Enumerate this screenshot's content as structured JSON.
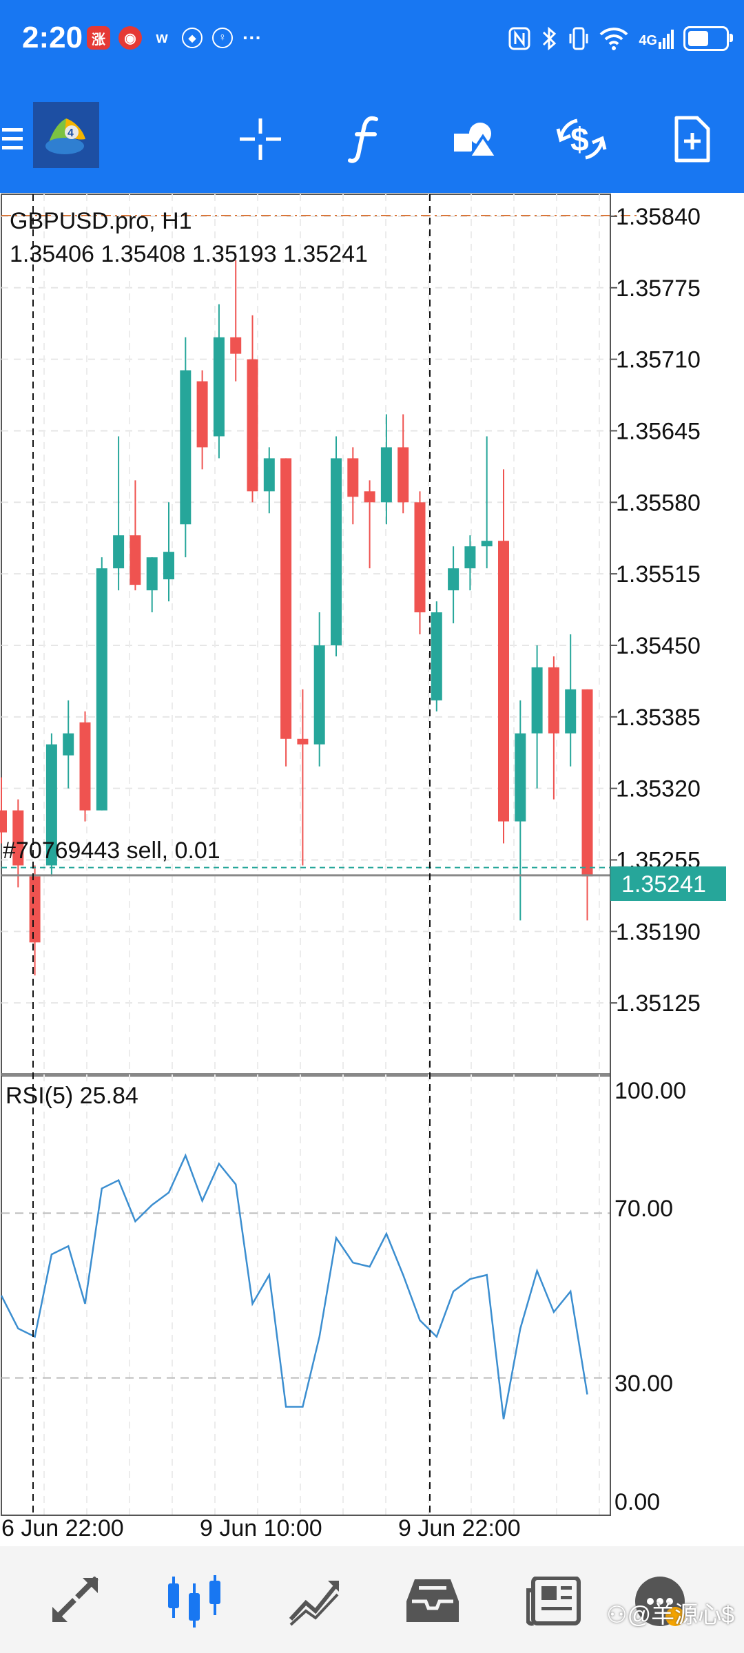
{
  "status_bar": {
    "time": "2:20",
    "more_indicator": "···",
    "network": "4G",
    "battery_level": 0.55,
    "notification_icons": [
      "trading-app-icon",
      "meituan-icon",
      "weibo-icon",
      "app-icon",
      "lightbulb-icon"
    ]
  },
  "toolbar": {
    "buttons": [
      "menu-icon",
      "mt4-logo",
      "crosshair-icon",
      "indicators-icon",
      "objects-icon",
      "trade-icon",
      "new-order-icon"
    ],
    "accent_color": "#1877f2"
  },
  "chart": {
    "symbol_line": "GBPUSD.pro, H1",
    "ohlc_line": "1.35406 1.35408 1.35193 1.35241",
    "order_label": "#70769443 sell, 0.01",
    "current_price": "1.35241",
    "price_ticks": [
      "1.35840",
      "1.35775",
      "1.35710",
      "1.35645",
      "1.35580",
      "1.35515",
      "1.35450",
      "1.35385",
      "1.35320",
      "1.35255",
      "1.35190",
      "1.35125"
    ],
    "time_labels": [
      "6 Jun 22:00",
      "9 Jun 10:00",
      "9 Jun 22:00"
    ],
    "up_color": "#26a69a",
    "down_color": "#ef5350",
    "rsi_label": "RSI(5) 25.84",
    "rsi_ticks": [
      "100.00",
      "70.00",
      "30.00",
      "0.00"
    ]
  },
  "chart_data": {
    "type": "candlestick",
    "symbol": "GBPUSD.pro",
    "timeframe": "H1",
    "ylim": [
      1.3508,
      1.3588
    ],
    "candles": [
      {
        "o": 1.353,
        "h": 1.3533,
        "l": 1.3527,
        "c": 1.3528
      },
      {
        "o": 1.353,
        "h": 1.3531,
        "l": 1.3523,
        "c": 1.3525
      },
      {
        "o": 1.3524,
        "h": 1.3525,
        "l": 1.3515,
        "c": 1.3518
      },
      {
        "o": 1.3525,
        "h": 1.3537,
        "l": 1.3524,
        "c": 1.3536
      },
      {
        "o": 1.3535,
        "h": 1.354,
        "l": 1.3532,
        "c": 1.3537
      },
      {
        "o": 1.3538,
        "h": 1.3539,
        "l": 1.3529,
        "c": 1.353
      },
      {
        "o": 1.353,
        "h": 1.3553,
        "l": 1.353,
        "c": 1.3552
      },
      {
        "o": 1.3552,
        "h": 1.3564,
        "l": 1.355,
        "c": 1.3555
      },
      {
        "o": 1.3555,
        "h": 1.356,
        "l": 1.355,
        "c": 1.35505
      },
      {
        "o": 1.355,
        "h": 1.3553,
        "l": 1.3548,
        "c": 1.3553
      },
      {
        "o": 1.3551,
        "h": 1.3558,
        "l": 1.3549,
        "c": 1.35535
      },
      {
        "o": 1.3556,
        "h": 1.3573,
        "l": 1.3553,
        "c": 1.357
      },
      {
        "o": 1.3569,
        "h": 1.357,
        "l": 1.3561,
        "c": 1.3563
      },
      {
        "o": 1.3564,
        "h": 1.3576,
        "l": 1.3562,
        "c": 1.3573
      },
      {
        "o": 1.3573,
        "h": 1.358,
        "l": 1.3569,
        "c": 1.35715
      },
      {
        "o": 1.3571,
        "h": 1.3575,
        "l": 1.3558,
        "c": 1.3559
      },
      {
        "o": 1.3559,
        "h": 1.3563,
        "l": 1.3557,
        "c": 1.3562
      },
      {
        "o": 1.3562,
        "h": 1.3562,
        "l": 1.3534,
        "c": 1.35365
      },
      {
        "o": 1.35365,
        "h": 1.3541,
        "l": 1.3525,
        "c": 1.3536
      },
      {
        "o": 1.3536,
        "h": 1.3548,
        "l": 1.3534,
        "c": 1.3545
      },
      {
        "o": 1.3545,
        "h": 1.3564,
        "l": 1.3544,
        "c": 1.3562
      },
      {
        "o": 1.3562,
        "h": 1.3563,
        "l": 1.3556,
        "c": 1.35585
      },
      {
        "o": 1.3559,
        "h": 1.356,
        "l": 1.3552,
        "c": 1.3558
      },
      {
        "o": 1.3558,
        "h": 1.3566,
        "l": 1.3556,
        "c": 1.3563
      },
      {
        "o": 1.3563,
        "h": 1.3566,
        "l": 1.3557,
        "c": 1.3558
      },
      {
        "o": 1.3558,
        "h": 1.3559,
        "l": 1.3546,
        "c": 1.3548
      },
      {
        "o": 1.354,
        "h": 1.3549,
        "l": 1.3539,
        "c": 1.3548
      },
      {
        "o": 1.355,
        "h": 1.3554,
        "l": 1.3547,
        "c": 1.3552
      },
      {
        "o": 1.3552,
        "h": 1.3555,
        "l": 1.355,
        "c": 1.3554
      },
      {
        "o": 1.3554,
        "h": 1.3564,
        "l": 1.3552,
        "c": 1.35545
      },
      {
        "o": 1.35545,
        "h": 1.3561,
        "l": 1.3527,
        "c": 1.3529
      },
      {
        "o": 1.3529,
        "h": 1.354,
        "l": 1.352,
        "c": 1.3537
      },
      {
        "o": 1.3537,
        "h": 1.3545,
        "l": 1.3532,
        "c": 1.3543
      },
      {
        "o": 1.3543,
        "h": 1.3544,
        "l": 1.3531,
        "c": 1.3537
      },
      {
        "o": 1.3537,
        "h": 1.3546,
        "l": 1.3534,
        "c": 1.3541
      },
      {
        "o": 1.3541,
        "h": 1.3541,
        "l": 1.352,
        "c": 1.3524
      }
    ],
    "current_price": 1.35241,
    "order_price": 1.35248,
    "rsi": {
      "period": 5,
      "ylim": [
        0,
        100
      ],
      "levels": [
        70,
        30
      ],
      "values": [
        50,
        42,
        40,
        60,
        62,
        48,
        76,
        78,
        68,
        72,
        75,
        84,
        73,
        82,
        77,
        48,
        55,
        23,
        23,
        40,
        64,
        58,
        57,
        65,
        55,
        44,
        40,
        51,
        54,
        55,
        20,
        42,
        56,
        46,
        51,
        26
      ]
    }
  }
}
